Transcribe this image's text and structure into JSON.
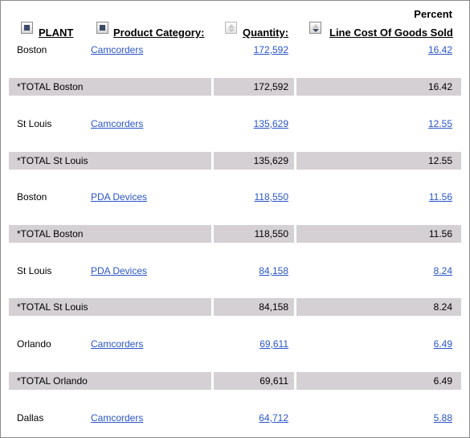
{
  "headers": {
    "plant": "PLANT",
    "category": "Product Category:",
    "quantity": "Quantity:",
    "percent_top": "Percent",
    "percent_bottom": "Line Cost Of Goods Sold"
  },
  "icons": {
    "plant_sort": "square-sort-icon",
    "category_sort": "square-sort-icon",
    "quantity_sort": "sort-arrows-icon",
    "percent_sort": "sort-descending-icon"
  },
  "colors": {
    "link": "#2a55c8",
    "total_band": "#d4d0d3",
    "border": "#8a8a8a"
  },
  "rows": [
    {
      "plant": "Boston",
      "category": "Camcorders",
      "quantity": "172,592",
      "percent": "16.42",
      "total_label": "*TOTAL Boston",
      "total_quantity": "172,592",
      "total_percent": "16.42"
    },
    {
      "plant": "St Louis",
      "category": "Camcorders",
      "quantity": "135,629",
      "percent": "12.55",
      "total_label": "*TOTAL St Louis",
      "total_quantity": "135,629",
      "total_percent": "12.55"
    },
    {
      "plant": "Boston",
      "category": "PDA Devices",
      "quantity": "118,550",
      "percent": "11.56",
      "total_label": "*TOTAL Boston",
      "total_quantity": "118,550",
      "total_percent": "11.56"
    },
    {
      "plant": "St Louis",
      "category": "PDA Devices",
      "quantity": "84,158",
      "percent": "8.24",
      "total_label": "*TOTAL St Louis",
      "total_quantity": "84,158",
      "total_percent": "8.24"
    },
    {
      "plant": "Orlando",
      "category": "Camcorders",
      "quantity": "69,611",
      "percent": "6.49",
      "total_label": "*TOTAL Orlando",
      "total_quantity": "69,611",
      "total_percent": "6.49"
    },
    {
      "plant": "Dallas",
      "category": "Camcorders",
      "quantity": "64,712",
      "percent": "5.88"
    }
  ]
}
